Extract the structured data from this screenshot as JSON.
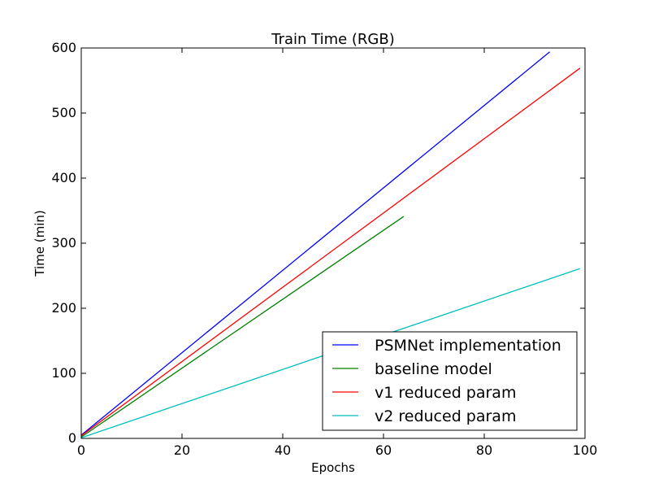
{
  "chart_data": {
    "type": "line",
    "title": "Train Time (RGB)",
    "xlabel": "Epochs",
    "ylabel": "Time (min)",
    "xlim": [
      0,
      100
    ],
    "ylim": [
      0,
      600
    ],
    "xticks": [
      0,
      20,
      40,
      60,
      80,
      100
    ],
    "yticks": [
      0,
      100,
      200,
      300,
      400,
      500,
      600
    ],
    "grid": false,
    "legend_position": "lower-right",
    "series": [
      {
        "name": "PSMNet implementation",
        "color": "#0000ff",
        "x": [
          0,
          93
        ],
        "y": [
          5,
          594
        ]
      },
      {
        "name": "baseline model",
        "color": "#008000",
        "x": [
          0,
          64
        ],
        "y": [
          2,
          341
        ]
      },
      {
        "name": "v1 reduced param",
        "color": "#ff0000",
        "x": [
          0,
          99
        ],
        "y": [
          4,
          569
        ]
      },
      {
        "name": "v2 reduced param",
        "color": "#00bfbf",
        "x": [
          0,
          99
        ],
        "y": [
          1,
          261
        ]
      }
    ]
  }
}
